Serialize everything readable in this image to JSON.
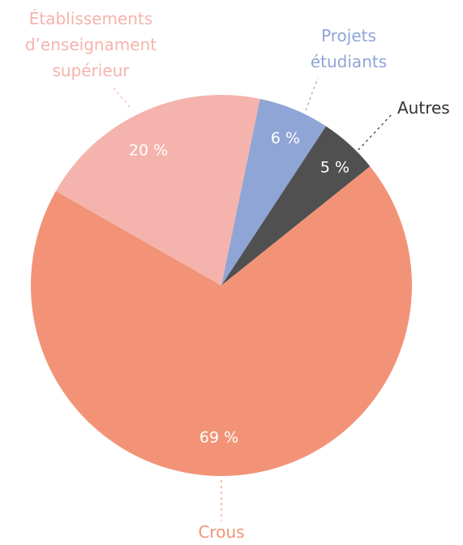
{
  "chart_data": {
    "type": "pie",
    "categories": [
      "Projets étudiants",
      "Autres",
      "Crous",
      "Établissements d’enseignament supérieur"
    ],
    "values": [
      6,
      5,
      69,
      20
    ],
    "value_labels": [
      "6 %",
      "5 %",
      "69 %",
      "20 %"
    ],
    "colors": [
      "#8fa5d6",
      "#505050",
      "#f29377",
      "#f5b3ad"
    ],
    "label_colors": [
      "#8fa5d6",
      "#333333",
      "#f29377",
      "#f5b3ad"
    ]
  }
}
